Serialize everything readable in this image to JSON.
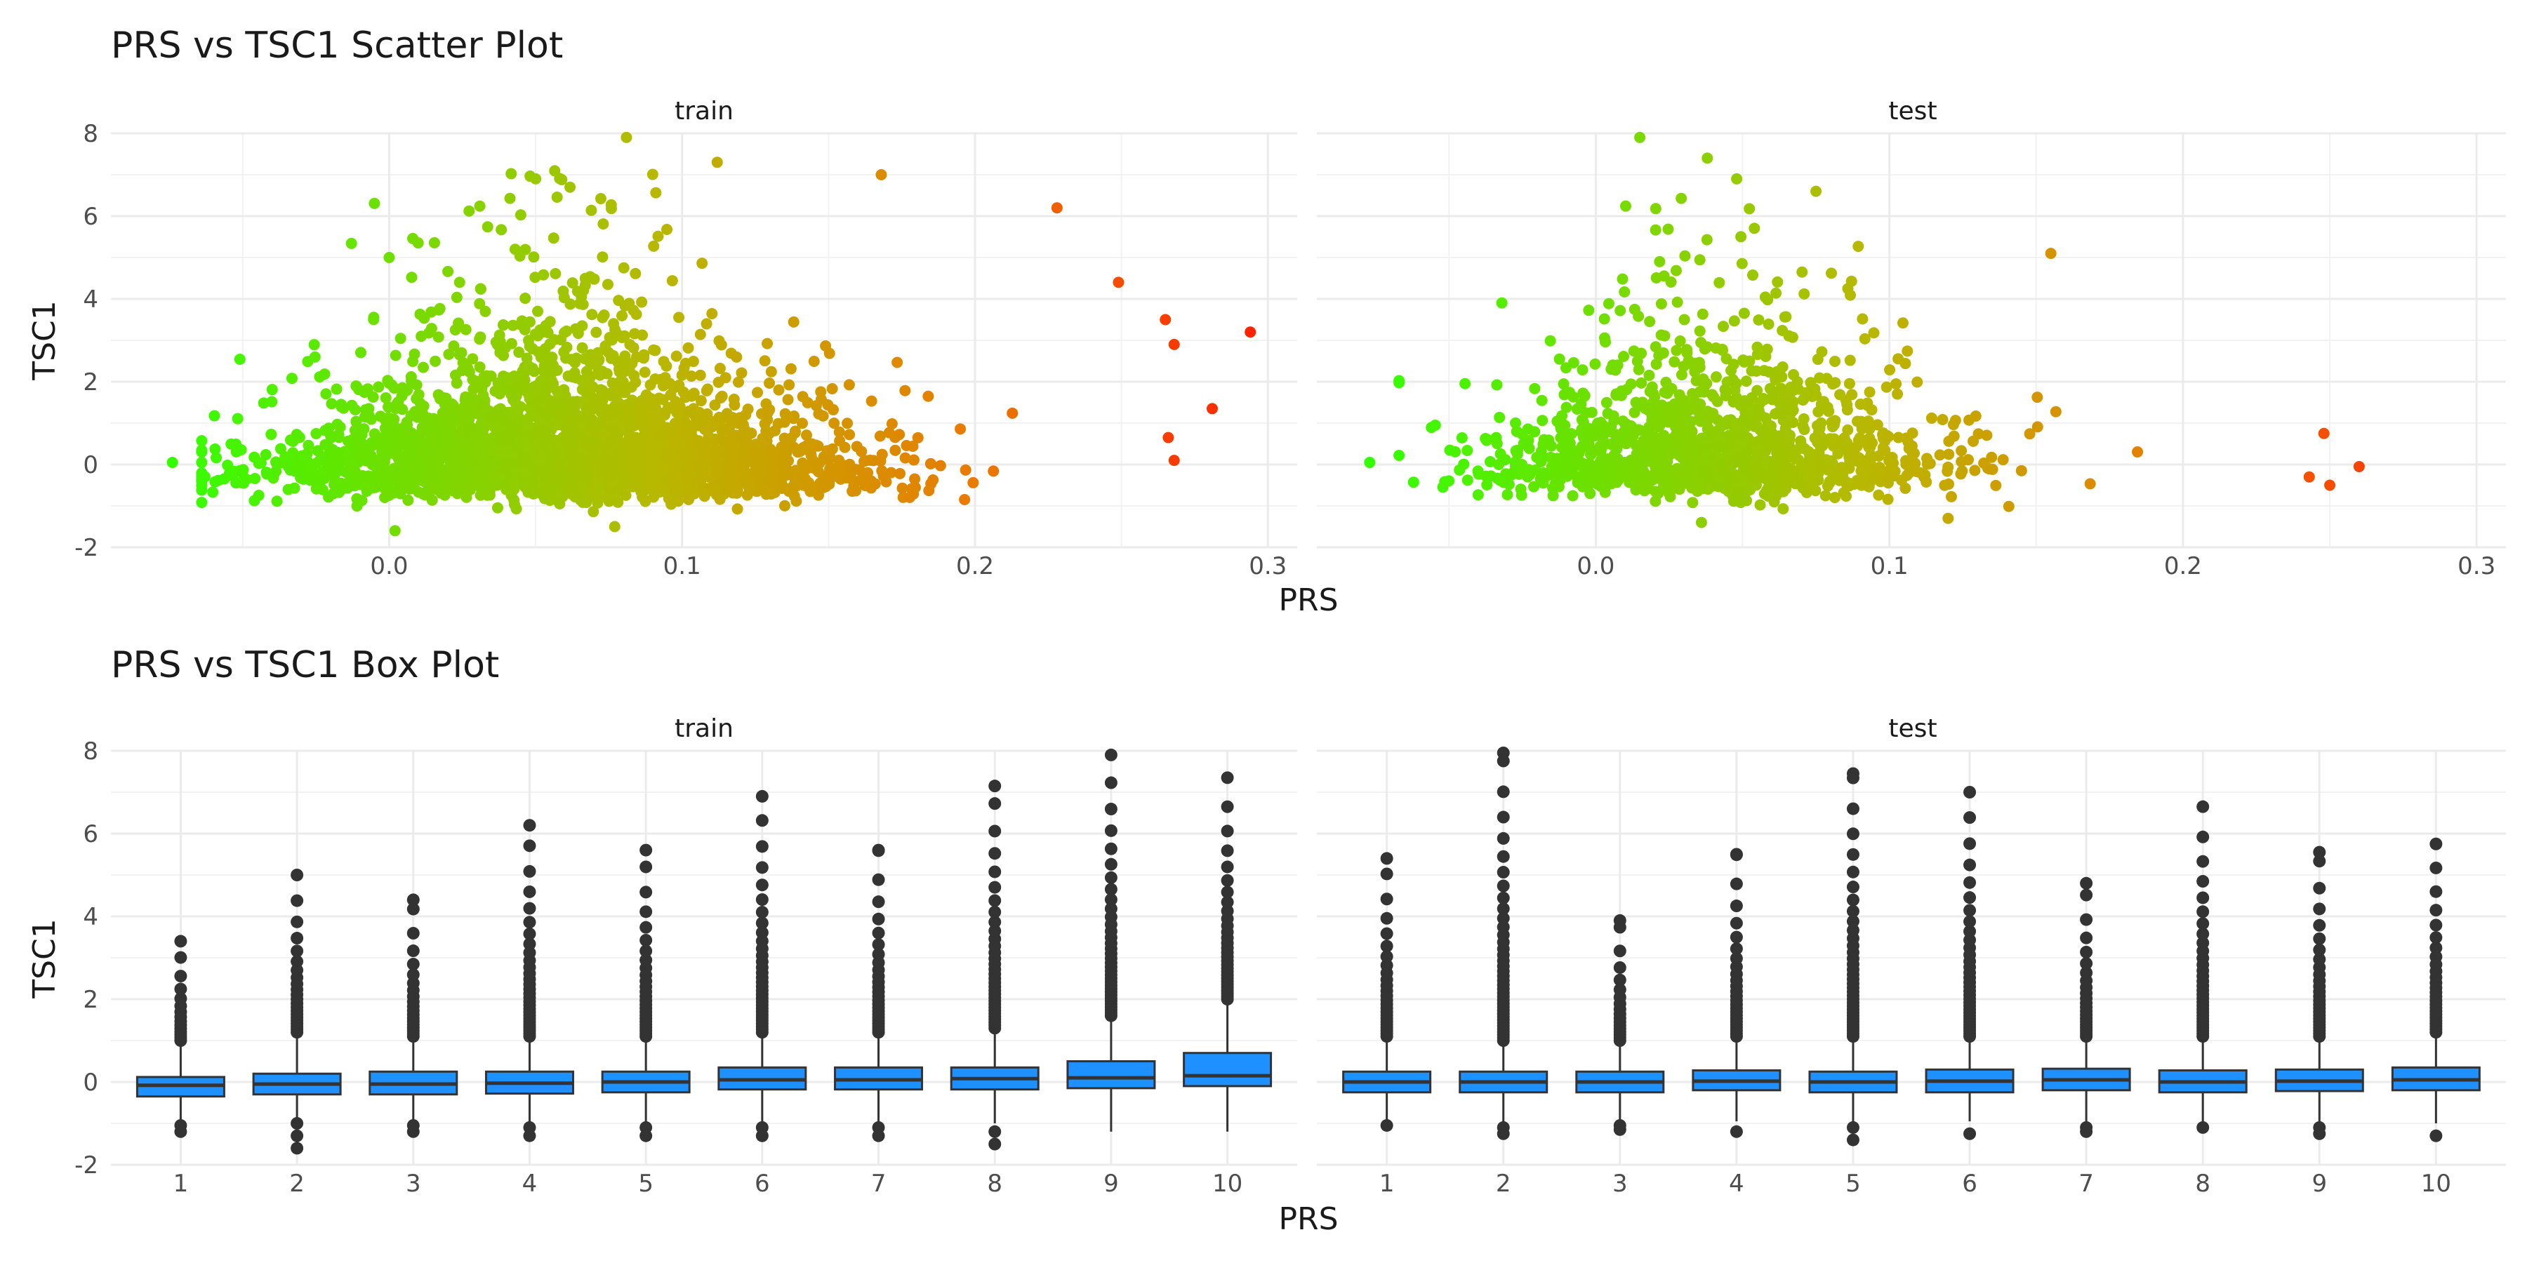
{
  "titles": {
    "scatter": "PRS vs TSC1 Scatter Plot",
    "box": "PRS vs TSC1 Box Plot"
  },
  "chart_data": [
    {
      "type": "scatter",
      "title": "PRS vs TSC1 Scatter Plot",
      "xlabel": "PRS",
      "ylabel": "TSC1",
      "facets": [
        "train",
        "test"
      ],
      "xlim": [
        -0.095,
        0.31
      ],
      "ylim": [
        -2,
        8
      ],
      "x_ticks": [
        "0.0",
        "0.1",
        "0.2",
        "0.3"
      ],
      "x_tick_values": [
        0,
        0.1,
        0.2,
        0.3
      ],
      "y_ticks": [
        "-2",
        "0",
        "2",
        "4",
        "6",
        "8"
      ],
      "y_tick_values": [
        -2,
        0,
        2,
        4,
        6,
        8
      ],
      "grid": true,
      "color_scale": {
        "low": "#33ff00",
        "mid": "#b8b800",
        "high": "#ff2200",
        "by": "PRS"
      },
      "series": [
        {
          "facet": "train",
          "n_points_approx": 9000,
          "x_range": [
            -0.074,
            0.294
          ],
          "y_range": [
            -1.6,
            7.9
          ],
          "bulk_center_x": 0.06,
          "notable_points": [
            [
              -0.074,
              0.05
            ],
            [
              0.081,
              7.9
            ],
            [
              0.112,
              7.3
            ],
            [
              0.05,
              6.9
            ],
            [
              0.168,
              7.0
            ],
            [
              0.228,
              6.2
            ],
            [
              0.249,
              4.4
            ],
            [
              0.265,
              3.5
            ],
            [
              0.268,
              2.9
            ],
            [
              0.266,
              0.65
            ],
            [
              0.268,
              0.1
            ],
            [
              0.281,
              1.35
            ],
            [
              0.294,
              3.2
            ],
            [
              0.0,
              5.0
            ],
            [
              0.002,
              -1.6
            ],
            [
              0.077,
              -1.5
            ]
          ]
        },
        {
          "facet": "test",
          "n_points_approx": 4000,
          "x_range": [
            -0.077,
            0.26
          ],
          "y_range": [
            -1.4,
            7.9
          ],
          "bulk_center_x": 0.04,
          "notable_points": [
            [
              -0.077,
              0.05
            ],
            [
              0.015,
              7.9
            ],
            [
              0.038,
              7.4
            ],
            [
              0.048,
              6.9
            ],
            [
              0.075,
              6.6
            ],
            [
              0.155,
              5.1
            ],
            [
              0.248,
              0.75
            ],
            [
              0.26,
              -0.05
            ],
            [
              0.25,
              -0.5
            ],
            [
              0.243,
              -0.3
            ],
            [
              0.036,
              -1.4
            ],
            [
              0.12,
              -1.3
            ]
          ]
        }
      ]
    },
    {
      "type": "box",
      "title": "PRS vs TSC1 Box Plot",
      "xlabel": "PRS",
      "ylabel": "TSC1",
      "facets": [
        "train",
        "test"
      ],
      "categories": [
        "1",
        "2",
        "3",
        "4",
        "5",
        "6",
        "7",
        "8",
        "9",
        "10"
      ],
      "ylim": [
        -2,
        8
      ],
      "y_ticks": [
        "-2",
        "0",
        "2",
        "4",
        "6",
        "8"
      ],
      "y_tick_values": [
        -2,
        0,
        2,
        4,
        6,
        8
      ],
      "grid": true,
      "box_color": "#1e90ff",
      "series": [
        {
          "facet": "train",
          "boxes": [
            {
              "q1": -0.35,
              "median": -0.08,
              "q3": 0.12,
              "whisker_low": -1.0,
              "whisker_high": 0.9,
              "outliers_low": [
                -1.05,
                -1.2
              ],
              "outliers_high_from": 1.0,
              "outliers_high_max": 3.4
            },
            {
              "q1": -0.3,
              "median": -0.05,
              "q3": 0.2,
              "whisker_low": -0.95,
              "whisker_high": 1.1,
              "outliers_low": [
                -1.0,
                -1.3,
                -1.6
              ],
              "outliers_high_from": 1.2,
              "outliers_high_max": 5.0
            },
            {
              "q1": -0.3,
              "median": -0.05,
              "q3": 0.25,
              "whisker_low": -1.0,
              "whisker_high": 1.0,
              "outliers_low": [
                -1.05,
                -1.2
              ],
              "outliers_high_from": 1.1,
              "outliers_high_max": 4.4
            },
            {
              "q1": -0.28,
              "median": -0.03,
              "q3": 0.25,
              "whisker_low": -1.0,
              "whisker_high": 1.0,
              "outliers_low": [
                -1.1,
                -1.3
              ],
              "outliers_high_from": 1.1,
              "outliers_high_max": 6.2
            },
            {
              "q1": -0.25,
              "median": 0.0,
              "q3": 0.25,
              "whisker_low": -1.0,
              "whisker_high": 1.0,
              "outliers_low": [
                -1.1,
                -1.3
              ],
              "outliers_high_from": 1.1,
              "outliers_high_max": 5.6
            },
            {
              "q1": -0.18,
              "median": 0.05,
              "q3": 0.35,
              "whisker_low": -1.0,
              "whisker_high": 1.1,
              "outliers_low": [
                -1.1,
                -1.3
              ],
              "outliers_high_from": 1.2,
              "outliers_high_max": 6.9
            },
            {
              "q1": -0.18,
              "median": 0.05,
              "q3": 0.35,
              "whisker_low": -1.0,
              "whisker_high": 1.1,
              "outliers_low": [
                -1.1,
                -1.3
              ],
              "outliers_high_from": 1.2,
              "outliers_high_max": 5.6
            },
            {
              "q1": -0.18,
              "median": 0.08,
              "q3": 0.35,
              "whisker_low": -1.0,
              "whisker_high": 1.2,
              "outliers_low": [
                -1.2,
                -1.5
              ],
              "outliers_high_from": 1.3,
              "outliers_high_max": 7.15
            },
            {
              "q1": -0.15,
              "median": 0.1,
              "q3": 0.5,
              "whisker_low": -1.2,
              "whisker_high": 1.5,
              "outliers_low": [],
              "outliers_high_from": 1.6,
              "outliers_high_max": 7.9
            },
            {
              "q1": -0.1,
              "median": 0.15,
              "q3": 0.7,
              "whisker_low": -1.2,
              "whisker_high": 1.9,
              "outliers_low": [],
              "outliers_high_from": 2.0,
              "outliers_high_max": 7.35
            }
          ]
        },
        {
          "facet": "test",
          "boxes": [
            {
              "q1": -0.25,
              "median": 0.0,
              "q3": 0.25,
              "whisker_low": -0.95,
              "whisker_high": 0.95,
              "outliers_low": [
                -1.05
              ],
              "outliers_high_from": 1.1,
              "outliers_high_max": 5.4
            },
            {
              "q1": -0.25,
              "median": 0.0,
              "q3": 0.25,
              "whisker_low": -0.95,
              "whisker_high": 0.95,
              "outliers_low": [
                -1.1,
                -1.25
              ],
              "outliers_high_from": 1.0,
              "outliers_high_max": 7.95
            },
            {
              "q1": -0.25,
              "median": 0.0,
              "q3": 0.25,
              "whisker_low": -0.95,
              "whisker_high": 0.95,
              "outliers_low": [
                -1.05,
                -1.15
              ],
              "outliers_high_from": 1.0,
              "outliers_high_max": 3.9
            },
            {
              "q1": -0.2,
              "median": 0.02,
              "q3": 0.28,
              "whisker_low": -0.95,
              "whisker_high": 1.0,
              "outliers_low": [
                -1.2
              ],
              "outliers_high_from": 1.1,
              "outliers_high_max": 5.5
            },
            {
              "q1": -0.25,
              "median": 0.0,
              "q3": 0.25,
              "whisker_low": -0.95,
              "whisker_high": 1.0,
              "outliers_low": [
                -1.1,
                -1.4
              ],
              "outliers_high_from": 1.1,
              "outliers_high_max": 7.45
            },
            {
              "q1": -0.25,
              "median": 0.02,
              "q3": 0.3,
              "whisker_low": -0.95,
              "whisker_high": 1.0,
              "outliers_low": [
                -1.25
              ],
              "outliers_high_from": 1.1,
              "outliers_high_max": 7.0
            },
            {
              "q1": -0.2,
              "median": 0.05,
              "q3": 0.32,
              "whisker_low": -0.95,
              "whisker_high": 1.0,
              "outliers_low": [
                -1.1,
                -1.2
              ],
              "outliers_high_from": 1.1,
              "outliers_high_max": 4.8
            },
            {
              "q1": -0.25,
              "median": 0.0,
              "q3": 0.28,
              "whisker_low": -0.95,
              "whisker_high": 1.0,
              "outliers_low": [
                -1.1
              ],
              "outliers_high_from": 1.1,
              "outliers_high_max": 6.65
            },
            {
              "q1": -0.22,
              "median": 0.02,
              "q3": 0.3,
              "whisker_low": -0.95,
              "whisker_high": 1.0,
              "outliers_low": [
                -1.1,
                -1.25
              ],
              "outliers_high_from": 1.1,
              "outliers_high_max": 5.55
            },
            {
              "q1": -0.2,
              "median": 0.05,
              "q3": 0.35,
              "whisker_low": -1.0,
              "whisker_high": 1.1,
              "outliers_low": [
                -1.3
              ],
              "outliers_high_from": 1.2,
              "outliers_high_max": 5.75
            }
          ]
        }
      ]
    }
  ]
}
